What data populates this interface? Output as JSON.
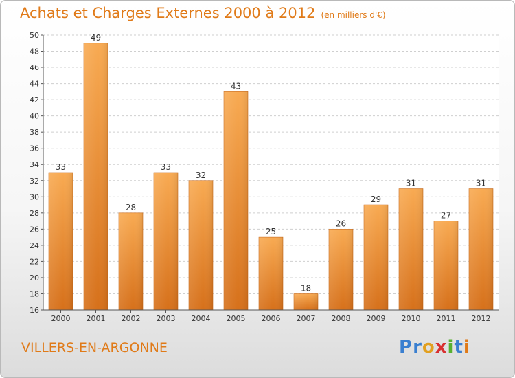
{
  "title": "Achats et Charges Externes 2000 à 2012",
  "unit": "(en milliers d'€)",
  "town": "VILLERS-EN-ARGONNE",
  "logo": {
    "text": "Proxiti",
    "letters": [
      {
        "ch": "P",
        "color": "#3a7fd0"
      },
      {
        "ch": "r",
        "color": "#3a7fd0"
      },
      {
        "ch": "o",
        "color": "#e2a020"
      },
      {
        "ch": "x",
        "color": "#d83030"
      },
      {
        "ch": "i",
        "color": "#58b030"
      },
      {
        "ch": "t",
        "color": "#3a7fd0"
      },
      {
        "ch": "i",
        "color": "#e07a18"
      }
    ]
  },
  "colors": {
    "accent": "#e07a18",
    "bar_light": "#f7a850",
    "bar_dark": "#d8731a"
  },
  "chart_data": {
    "type": "bar",
    "title": "Achats et Charges Externes 2000 à 2012",
    "subtitle": "(en milliers d'€)",
    "categories": [
      "2000",
      "2001",
      "2002",
      "2003",
      "2004",
      "2005",
      "2006",
      "2007",
      "2008",
      "2009",
      "2010",
      "2011",
      "2012"
    ],
    "values": [
      33,
      49,
      28,
      33,
      32,
      43,
      25,
      18,
      26,
      29,
      31,
      27,
      31
    ],
    "ylim": [
      16,
      50
    ],
    "yticks": [
      16,
      18,
      20,
      22,
      24,
      26,
      28,
      30,
      32,
      34,
      36,
      38,
      40,
      42,
      44,
      46,
      48,
      50
    ],
    "grid": true,
    "data_labels": true,
    "xlabel": "",
    "ylabel": ""
  }
}
